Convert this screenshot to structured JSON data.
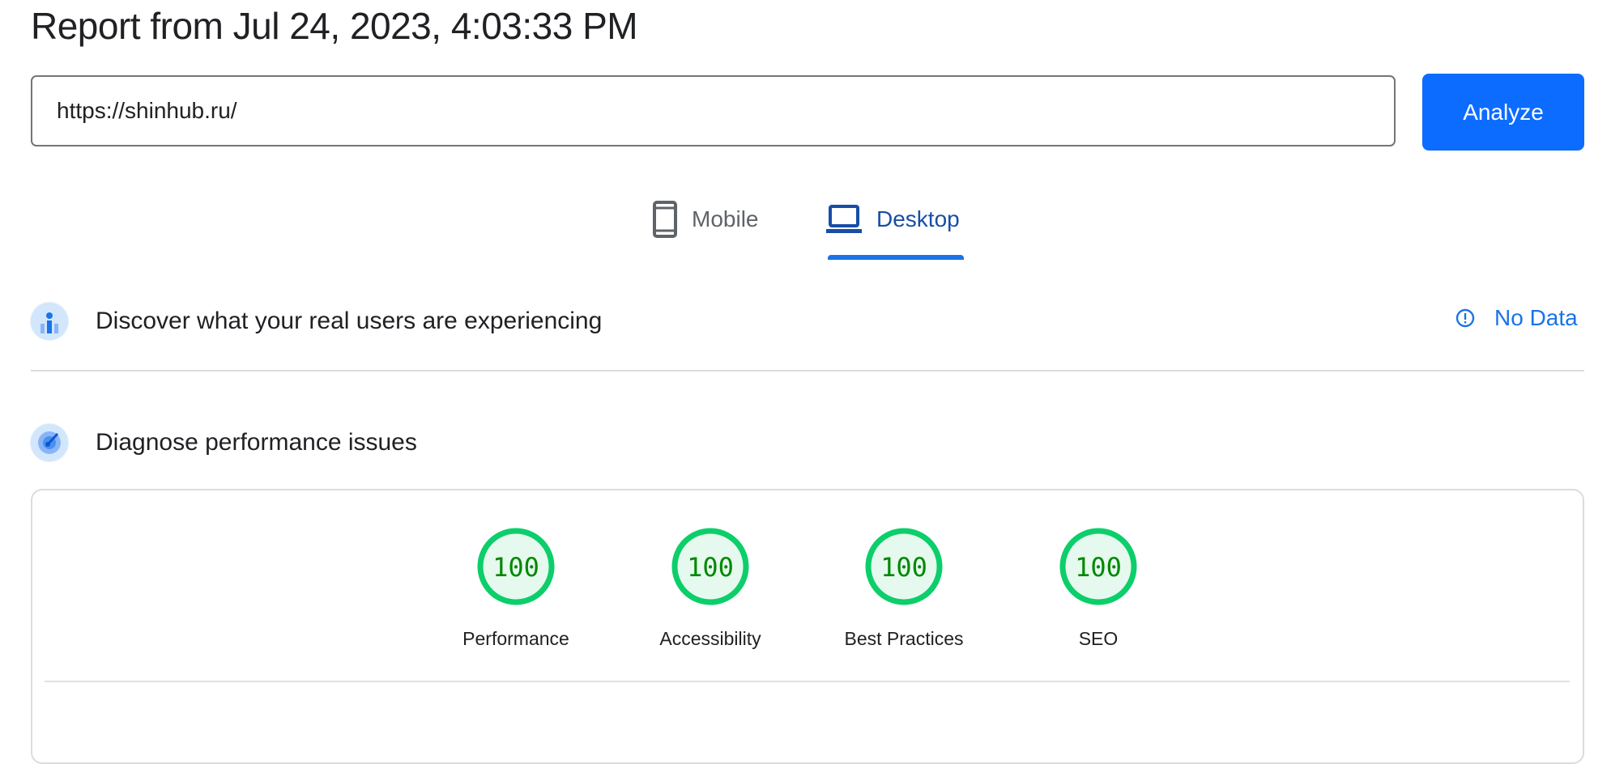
{
  "header": {
    "title": "Report from Jul 24, 2023, 4:03:33 PM"
  },
  "search": {
    "url_value": "https://shinhub.ru/",
    "analyze_label": "Analyze"
  },
  "tabs": [
    {
      "label": "Mobile",
      "icon": "smartphone-icon",
      "selected": false
    },
    {
      "label": "Desktop",
      "icon": "laptop-icon",
      "selected": true
    }
  ],
  "sections": {
    "field": {
      "title": "Discover what your real users are experiencing",
      "status": "No Data",
      "status_icon": "info-icon"
    },
    "lab": {
      "title": "Diagnose performance issues"
    }
  },
  "scores": [
    {
      "label": "Performance",
      "value": "100"
    },
    {
      "label": "Accessibility",
      "value": "100"
    },
    {
      "label": "Best Practices",
      "value": "100"
    },
    {
      "label": "SEO",
      "value": "100"
    }
  ],
  "colors": {
    "accent": "#1a73e8",
    "analyze_button": "#0c6cff",
    "pass_ring": "#0cce6b",
    "pass_fill": "#e6f9ee",
    "pass_text": "#008800"
  }
}
